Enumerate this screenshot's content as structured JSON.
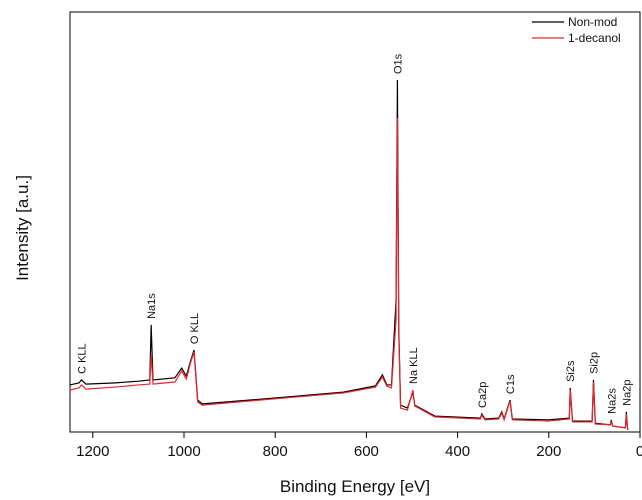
{
  "chart_data": {
    "type": "line",
    "x_label": "Binding Energy [eV]",
    "y_label": "Intensity [a.u.]",
    "x": [
      1250,
      1230,
      1225,
      1215,
      1150,
      1100,
      1075,
      1072,
      1068,
      1020,
      1005,
      995,
      985,
      978,
      970,
      960,
      800,
      650,
      580,
      565,
      555,
      545,
      535,
      532,
      529,
      525,
      510,
      498,
      494,
      450,
      350,
      347,
      340,
      310,
      303,
      298,
      285,
      280,
      200,
      155,
      153,
      148,
      105,
      102,
      98,
      65,
      63,
      60,
      32,
      30,
      27
    ],
    "series": [
      {
        "name": "Non-mod",
        "color": "#000000",
        "values": [
          11.2,
          11.7,
          12.4,
          11.4,
          11.7,
          12.1,
          12.4,
          25.5,
          12.4,
          12.9,
          15.2,
          13.3,
          17.1,
          19.5,
          7.6,
          6.7,
          8.1,
          9.5,
          11,
          13.6,
          11.2,
          11.2,
          31.4,
          83.8,
          24.3,
          6.4,
          5.7,
          9.5,
          6.4,
          3.8,
          3.3,
          4.3,
          3.1,
          3.3,
          4.8,
          3.1,
          7.6,
          3.1,
          2.9,
          3.3,
          10.5,
          2.6,
          2.6,
          12.4,
          2.1,
          1.7,
          2.9,
          1.4,
          1,
          4.8,
          0.5
        ]
      },
      {
        "name": "1-decanol",
        "color": "#e8262b",
        "values": [
          10,
          10.5,
          11.2,
          10.2,
          10.7,
          11.2,
          11.4,
          18.3,
          11.4,
          11.9,
          14.5,
          12.6,
          16.7,
          19,
          7.1,
          6.4,
          7.9,
          9.3,
          10.7,
          13.1,
          10.9,
          10.5,
          26.7,
          74.8,
          23.1,
          5.7,
          5.2,
          10,
          6.2,
          3.6,
          3.1,
          4,
          2.9,
          3.1,
          4.5,
          2.9,
          7.4,
          2.9,
          2.6,
          3.1,
          10,
          2.4,
          2.4,
          11.9,
          1.9,
          1.7,
          2.6,
          1.4,
          1,
          4.3,
          0.5
        ]
      }
    ],
    "annotations": [
      {
        "text": "C KLL",
        "x": 1225
      },
      {
        "text": "Na1s",
        "x": 1072
      },
      {
        "text": "O KLL",
        "x": 978
      },
      {
        "text": "O1s",
        "x": 532
      },
      {
        "text": "Na KLL",
        "x": 498
      },
      {
        "text": "Ca2p",
        "x": 347
      },
      {
        "text": "C1s",
        "x": 285
      },
      {
        "text": "Si2s",
        "x": 153
      },
      {
        "text": "Si2p",
        "x": 102
      },
      {
        "text": "Na2s",
        "x": 63
      },
      {
        "text": "Na2p",
        "x": 30
      }
    ],
    "xlim": [
      1250,
      0
    ],
    "ylim": [
      0,
      100
    ],
    "xticks": [
      1200,
      1000,
      800,
      600,
      400,
      200,
      0
    ],
    "legend": "upper right"
  }
}
